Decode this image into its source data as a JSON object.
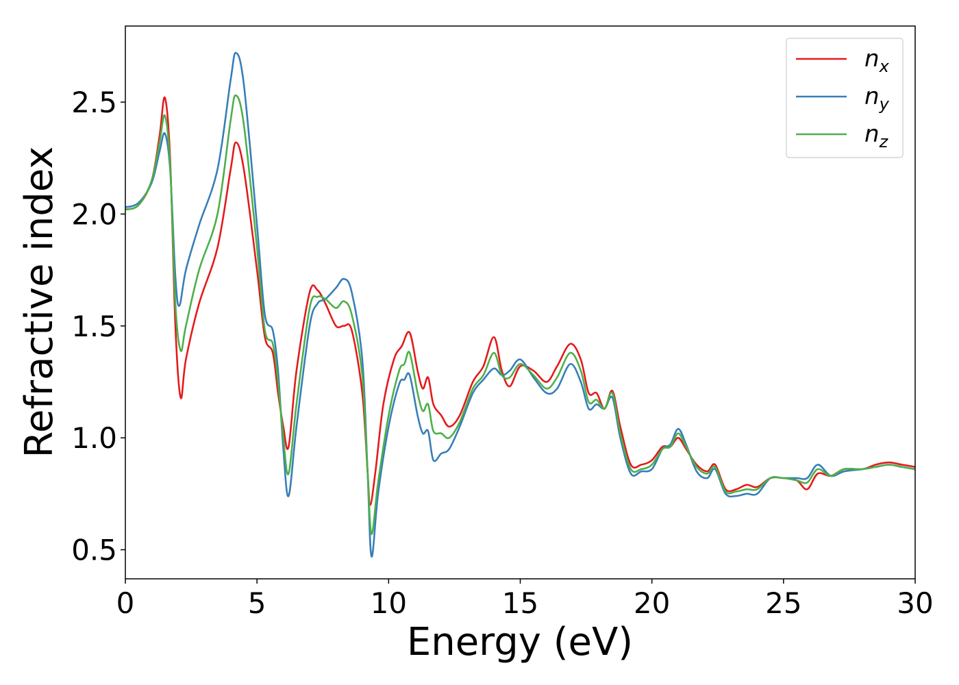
{
  "chart_data": {
    "type": "line",
    "title": "",
    "xlabel": "Energy (eV)",
    "ylabel": "Refractive index",
    "xlim": [
      0,
      30
    ],
    "ylim": [
      0.37,
      2.84
    ],
    "xticks": [
      0,
      5,
      10,
      15,
      20,
      25,
      30
    ],
    "xtick_labels": [
      "0",
      "5",
      "10",
      "15",
      "20",
      "25",
      "30"
    ],
    "yticks": [
      0.5,
      1.0,
      1.5,
      2.0,
      2.5
    ],
    "ytick_labels": [
      "0.5",
      "1.0",
      "1.5",
      "2.0",
      "2.5"
    ],
    "grid": false,
    "legend_position": "top-right",
    "series": [
      {
        "name": "n",
        "subscript": "x",
        "color": "#e41a1c",
        "points": [
          [
            0,
            2.02
          ],
          [
            0.5,
            2.04
          ],
          [
            1.0,
            2.15
          ],
          [
            1.3,
            2.35
          ],
          [
            1.5,
            2.52
          ],
          [
            1.7,
            2.25
          ],
          [
            1.9,
            1.5
          ],
          [
            2.1,
            1.18
          ],
          [
            2.3,
            1.35
          ],
          [
            2.8,
            1.6
          ],
          [
            3.5,
            1.85
          ],
          [
            4.0,
            2.2
          ],
          [
            4.2,
            2.32
          ],
          [
            4.5,
            2.2
          ],
          [
            5.0,
            1.75
          ],
          [
            5.3,
            1.45
          ],
          [
            5.6,
            1.38
          ],
          [
            5.8,
            1.2
          ],
          [
            6.0,
            1.05
          ],
          [
            6.2,
            0.96
          ],
          [
            6.5,
            1.3
          ],
          [
            7.0,
            1.65
          ],
          [
            7.3,
            1.66
          ],
          [
            7.6,
            1.6
          ],
          [
            8.0,
            1.5
          ],
          [
            8.3,
            1.5
          ],
          [
            8.6,
            1.48
          ],
          [
            9.0,
            1.2
          ],
          [
            9.2,
            0.85
          ],
          [
            9.3,
            0.7
          ],
          [
            9.5,
            0.85
          ],
          [
            9.8,
            1.15
          ],
          [
            10.2,
            1.35
          ],
          [
            10.5,
            1.41
          ],
          [
            10.8,
            1.47
          ],
          [
            11.1,
            1.3
          ],
          [
            11.3,
            1.22
          ],
          [
            11.5,
            1.27
          ],
          [
            11.7,
            1.15
          ],
          [
            12.0,
            1.1
          ],
          [
            12.3,
            1.05
          ],
          [
            12.7,
            1.1
          ],
          [
            13.2,
            1.25
          ],
          [
            13.6,
            1.32
          ],
          [
            14.0,
            1.45
          ],
          [
            14.3,
            1.3
          ],
          [
            14.6,
            1.23
          ],
          [
            15.0,
            1.32
          ],
          [
            15.5,
            1.3
          ],
          [
            16.0,
            1.25
          ],
          [
            16.4,
            1.32
          ],
          [
            16.9,
            1.42
          ],
          [
            17.3,
            1.35
          ],
          [
            17.6,
            1.2
          ],
          [
            17.9,
            1.2
          ],
          [
            18.2,
            1.13
          ],
          [
            18.5,
            1.21
          ],
          [
            18.8,
            1.05
          ],
          [
            19.2,
            0.88
          ],
          [
            19.6,
            0.88
          ],
          [
            20.0,
            0.9
          ],
          [
            20.4,
            0.96
          ],
          [
            20.7,
            0.96
          ],
          [
            21.0,
            1.0
          ],
          [
            21.3,
            0.95
          ],
          [
            21.7,
            0.88
          ],
          [
            22.1,
            0.85
          ],
          [
            22.4,
            0.88
          ],
          [
            22.8,
            0.77
          ],
          [
            23.2,
            0.77
          ],
          [
            23.6,
            0.79
          ],
          [
            24.0,
            0.78
          ],
          [
            24.5,
            0.82
          ],
          [
            25.0,
            0.82
          ],
          [
            25.5,
            0.81
          ],
          [
            25.9,
            0.77
          ],
          [
            26.3,
            0.84
          ],
          [
            26.8,
            0.83
          ],
          [
            27.3,
            0.86
          ],
          [
            28.0,
            0.86
          ],
          [
            28.5,
            0.88
          ],
          [
            29.0,
            0.89
          ],
          [
            29.5,
            0.88
          ],
          [
            30,
            0.87
          ]
        ]
      },
      {
        "name": "n",
        "subscript": "y",
        "color": "#377eb8",
        "points": [
          [
            0,
            2.03
          ],
          [
            0.5,
            2.05
          ],
          [
            1.0,
            2.14
          ],
          [
            1.3,
            2.28
          ],
          [
            1.5,
            2.36
          ],
          [
            1.7,
            2.2
          ],
          [
            1.9,
            1.72
          ],
          [
            2.05,
            1.59
          ],
          [
            2.3,
            1.75
          ],
          [
            2.8,
            1.95
          ],
          [
            3.5,
            2.2
          ],
          [
            4.0,
            2.6
          ],
          [
            4.2,
            2.72
          ],
          [
            4.5,
            2.58
          ],
          [
            5.0,
            1.95
          ],
          [
            5.3,
            1.55
          ],
          [
            5.6,
            1.48
          ],
          [
            5.8,
            1.3
          ],
          [
            6.0,
            0.95
          ],
          [
            6.2,
            0.74
          ],
          [
            6.5,
            1.05
          ],
          [
            7.0,
            1.5
          ],
          [
            7.3,
            1.6
          ],
          [
            7.6,
            1.62
          ],
          [
            8.0,
            1.67
          ],
          [
            8.3,
            1.71
          ],
          [
            8.6,
            1.65
          ],
          [
            9.0,
            1.35
          ],
          [
            9.2,
            0.85
          ],
          [
            9.35,
            0.47
          ],
          [
            9.6,
            0.75
          ],
          [
            10.0,
            1.05
          ],
          [
            10.4,
            1.24
          ],
          [
            10.6,
            1.26
          ],
          [
            10.8,
            1.28
          ],
          [
            11.1,
            1.1
          ],
          [
            11.3,
            1.02
          ],
          [
            11.5,
            1.03
          ],
          [
            11.7,
            0.9
          ],
          [
            12.0,
            0.93
          ],
          [
            12.3,
            0.95
          ],
          [
            12.7,
            1.05
          ],
          [
            13.2,
            1.2
          ],
          [
            13.6,
            1.26
          ],
          [
            14.0,
            1.31
          ],
          [
            14.3,
            1.28
          ],
          [
            14.6,
            1.3
          ],
          [
            15.0,
            1.35
          ],
          [
            15.5,
            1.27
          ],
          [
            16.0,
            1.2
          ],
          [
            16.4,
            1.22
          ],
          [
            16.9,
            1.33
          ],
          [
            17.3,
            1.25
          ],
          [
            17.6,
            1.13
          ],
          [
            17.9,
            1.15
          ],
          [
            18.2,
            1.13
          ],
          [
            18.5,
            1.18
          ],
          [
            18.8,
            1.0
          ],
          [
            19.2,
            0.84
          ],
          [
            19.6,
            0.85
          ],
          [
            20.0,
            0.86
          ],
          [
            20.4,
            0.95
          ],
          [
            20.7,
            0.97
          ],
          [
            21.0,
            1.04
          ],
          [
            21.3,
            0.97
          ],
          [
            21.7,
            0.85
          ],
          [
            22.1,
            0.82
          ],
          [
            22.4,
            0.86
          ],
          [
            22.8,
            0.75
          ],
          [
            23.2,
            0.74
          ],
          [
            23.6,
            0.75
          ],
          [
            24.0,
            0.75
          ],
          [
            24.5,
            0.82
          ],
          [
            25.0,
            0.82
          ],
          [
            25.5,
            0.82
          ],
          [
            25.9,
            0.82
          ],
          [
            26.3,
            0.88
          ],
          [
            26.8,
            0.83
          ],
          [
            27.3,
            0.85
          ],
          [
            28.0,
            0.86
          ],
          [
            28.5,
            0.87
          ],
          [
            29.0,
            0.88
          ],
          [
            29.5,
            0.87
          ],
          [
            30,
            0.86
          ]
        ]
      },
      {
        "name": "n",
        "subscript": "z",
        "color": "#4daf4a",
        "points": [
          [
            0,
            2.02
          ],
          [
            0.5,
            2.04
          ],
          [
            1.0,
            2.15
          ],
          [
            1.3,
            2.32
          ],
          [
            1.5,
            2.44
          ],
          [
            1.7,
            2.22
          ],
          [
            1.9,
            1.6
          ],
          [
            2.1,
            1.39
          ],
          [
            2.3,
            1.5
          ],
          [
            2.8,
            1.75
          ],
          [
            3.5,
            2.0
          ],
          [
            4.0,
            2.42
          ],
          [
            4.2,
            2.53
          ],
          [
            4.5,
            2.4
          ],
          [
            5.0,
            1.85
          ],
          [
            5.3,
            1.48
          ],
          [
            5.6,
            1.42
          ],
          [
            5.8,
            1.25
          ],
          [
            6.0,
            1.0
          ],
          [
            6.2,
            0.84
          ],
          [
            6.5,
            1.15
          ],
          [
            7.0,
            1.58
          ],
          [
            7.3,
            1.63
          ],
          [
            7.6,
            1.62
          ],
          [
            8.0,
            1.58
          ],
          [
            8.3,
            1.61
          ],
          [
            8.6,
            1.55
          ],
          [
            9.0,
            1.28
          ],
          [
            9.2,
            0.85
          ],
          [
            9.35,
            0.57
          ],
          [
            9.6,
            0.8
          ],
          [
            10.0,
            1.1
          ],
          [
            10.4,
            1.3
          ],
          [
            10.6,
            1.33
          ],
          [
            10.8,
            1.38
          ],
          [
            11.1,
            1.2
          ],
          [
            11.3,
            1.12
          ],
          [
            11.5,
            1.15
          ],
          [
            11.7,
            1.03
          ],
          [
            12.0,
            1.02
          ],
          [
            12.3,
            1.0
          ],
          [
            12.7,
            1.07
          ],
          [
            13.2,
            1.22
          ],
          [
            13.6,
            1.28
          ],
          [
            14.0,
            1.38
          ],
          [
            14.3,
            1.28
          ],
          [
            14.6,
            1.27
          ],
          [
            15.0,
            1.33
          ],
          [
            15.5,
            1.28
          ],
          [
            16.0,
            1.22
          ],
          [
            16.4,
            1.27
          ],
          [
            16.9,
            1.38
          ],
          [
            17.3,
            1.3
          ],
          [
            17.6,
            1.16
          ],
          [
            17.9,
            1.17
          ],
          [
            18.2,
            1.13
          ],
          [
            18.5,
            1.2
          ],
          [
            18.8,
            1.02
          ],
          [
            19.2,
            0.86
          ],
          [
            19.6,
            0.86
          ],
          [
            20.0,
            0.88
          ],
          [
            20.4,
            0.95
          ],
          [
            20.7,
            0.96
          ],
          [
            21.0,
            1.02
          ],
          [
            21.3,
            0.96
          ],
          [
            21.7,
            0.87
          ],
          [
            22.1,
            0.84
          ],
          [
            22.4,
            0.87
          ],
          [
            22.8,
            0.76
          ],
          [
            23.2,
            0.76
          ],
          [
            23.6,
            0.77
          ],
          [
            24.0,
            0.77
          ],
          [
            24.5,
            0.82
          ],
          [
            25.0,
            0.82
          ],
          [
            25.5,
            0.81
          ],
          [
            25.9,
            0.8
          ],
          [
            26.3,
            0.86
          ],
          [
            26.8,
            0.83
          ],
          [
            27.3,
            0.86
          ],
          [
            28.0,
            0.86
          ],
          [
            28.5,
            0.87
          ],
          [
            29.0,
            0.88
          ],
          [
            29.5,
            0.87
          ],
          [
            30,
            0.86
          ]
        ]
      }
    ]
  }
}
